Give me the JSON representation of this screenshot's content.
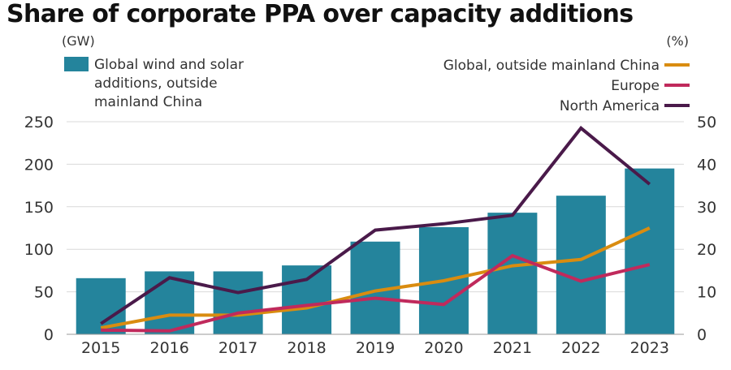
{
  "chart_data": {
    "type": "bar+line",
    "title": "Share of corporate PPA over capacity additions",
    "categories": [
      "2015",
      "2016",
      "2017",
      "2018",
      "2019",
      "2020",
      "2021",
      "2022",
      "2023"
    ],
    "bar_series": {
      "name": "Global wind and solar additions, outside mainland China",
      "legend_lines": [
        "Global wind and solar",
        "additions, outside",
        "mainland China"
      ],
      "color": "#24849c",
      "axis": "left",
      "values": [
        66,
        74,
        74,
        81,
        109,
        126,
        143,
        163,
        195
      ]
    },
    "line_series": [
      {
        "name": "Global, outside mainland China",
        "color": "#d98c10",
        "axis": "right",
        "values": [
          1.5,
          4.5,
          4.5,
          6.2,
          10.2,
          12.6,
          16.1,
          17.6,
          25
        ]
      },
      {
        "name": "Europe",
        "color": "#c02a5c",
        "axis": "right",
        "values": [
          1,
          0.8,
          5,
          6.8,
          8.5,
          7,
          18.5,
          12.5,
          16.4
        ]
      },
      {
        "name": "North America",
        "color": "#4a1a4a",
        "axis": "right",
        "values": [
          2.5,
          13.3,
          9.8,
          12.9,
          24.5,
          26,
          28,
          48.5,
          35.3
        ]
      }
    ],
    "y_left": {
      "label": "(GW)",
      "min": 0,
      "max": 250,
      "ticks": [
        0,
        50,
        100,
        150,
        200,
        250
      ]
    },
    "y_right": {
      "label": "(%)",
      "min": 0,
      "max": 50,
      "ticks": [
        0,
        10,
        20,
        30,
        40,
        50
      ]
    },
    "grid": true,
    "legend_position": "top"
  }
}
